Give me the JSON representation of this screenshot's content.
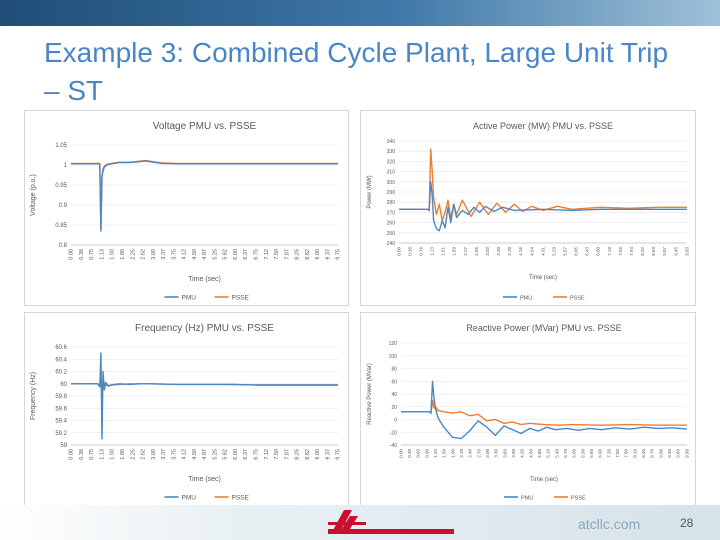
{
  "slide": {
    "title": "Example 3: Combined Cycle Plant, Large Unit Trip – ST",
    "website": "atcllc.com",
    "page_number": "28",
    "company_logo_text": "AMERICAN TRANSMISSION COMPANY"
  },
  "chart_data": [
    {
      "type": "line",
      "title": "Voltage PMU vs. PSSE",
      "xlabel": "Time (sec)",
      "ylabel": "Voltage (p.u.)",
      "x_tick_labels": [
        "0.00",
        "0.38",
        "0.75",
        "1.13",
        "1.50",
        "1.88",
        "2.25",
        "2.62",
        "3.00",
        "3.37",
        "3.75",
        "4.12",
        "4.50",
        "4.87",
        "5.25",
        "5.62",
        "6.00",
        "6.37",
        "6.75",
        "7.12",
        "7.50",
        "7.87",
        "8.25",
        "8.62",
        "9.00",
        "9.37",
        "9.75"
      ],
      "y_tick_labels": [
        "1.05",
        "1",
        "0.95",
        "0.9",
        "0.85",
        "0.8"
      ],
      "xlim": [
        0,
        10
      ],
      "ylim": [
        0.8,
        1.05
      ],
      "legend": "bottom",
      "series": [
        {
          "name": "PMU",
          "color": "#4a86c5",
          "x": [
            0,
            0.5,
            1.0,
            1.08,
            1.12,
            1.16,
            1.2,
            1.25,
            1.35,
            1.5,
            1.8,
            2.2,
            2.8,
            3.4,
            4.0,
            5,
            6,
            7,
            8,
            9,
            10
          ],
          "y": [
            1.003,
            1.003,
            1.003,
            1.003,
            0.835,
            0.97,
            0.985,
            0.995,
            1.0,
            1.003,
            1.006,
            1.006,
            1.01,
            1.004,
            1.003,
            1.003,
            1.003,
            1.003,
            1.003,
            1.003,
            1.003
          ]
        },
        {
          "name": "PSSE",
          "color": "#ed7d31",
          "x": [
            0,
            0.5,
            1.0,
            1.08,
            1.12,
            1.16,
            1.2,
            1.25,
            1.35,
            1.5,
            1.8,
            2.2,
            2.8,
            3.4,
            4.0,
            5,
            6,
            7,
            8,
            9,
            10
          ],
          "y": [
            1.004,
            1.004,
            1.004,
            1.004,
            0.84,
            0.972,
            0.99,
            0.997,
            1.002,
            1.004,
            1.007,
            1.007,
            1.011,
            1.005,
            1.004,
            1.004,
            1.004,
            1.004,
            1.004,
            1.004,
            1.004
          ]
        }
      ]
    },
    {
      "type": "line",
      "title": "Active Power (MW) PMU vs. PSSE",
      "xlabel": "Time (sec)",
      "ylabel": "Power (MW)",
      "x_tick_labels": [
        "0.00",
        "0.38",
        "0.76",
        "1.13",
        "1.51",
        "1.89",
        "2.27",
        "2.65",
        "3.02",
        "3.40",
        "3.78",
        "4.16",
        "4.54",
        "4.91",
        "5.29",
        "5.67",
        "6.05",
        "6.43",
        "6.80",
        "7.18",
        "7.56",
        "7.94",
        "8.32",
        "8.69",
        "9.07",
        "9.45",
        "9.83"
      ],
      "y_tick_labels": [
        "340",
        "330",
        "320",
        "310",
        "300",
        "290",
        "280",
        "270",
        "260",
        "250",
        "240"
      ],
      "xlim": [
        0,
        10
      ],
      "ylim": [
        240,
        340
      ],
      "legend": "bottom",
      "series": [
        {
          "name": "PMU",
          "color": "#4a86c5",
          "x": [
            0,
            0.8,
            1.0,
            1.05,
            1.1,
            1.15,
            1.2,
            1.3,
            1.4,
            1.5,
            1.6,
            1.7,
            1.8,
            1.9,
            2.0,
            2.2,
            2.4,
            2.6,
            2.8,
            3.0,
            3.3,
            3.6,
            4,
            5,
            6,
            7,
            8,
            9,
            10
          ],
          "y": [
            273,
            273,
            273,
            272,
            300,
            288,
            262,
            254,
            252,
            262,
            255,
            275,
            260,
            278,
            265,
            272,
            268,
            275,
            270,
            276,
            271,
            275,
            272,
            273,
            272,
            273,
            273,
            273,
            273
          ]
        },
        {
          "name": "PSSE",
          "color": "#ed7d31",
          "x": [
            0,
            0.8,
            1.0,
            1.05,
            1.1,
            1.15,
            1.2,
            1.3,
            1.4,
            1.5,
            1.6,
            1.7,
            1.8,
            1.9,
            2.0,
            2.2,
            2.5,
            2.8,
            3.1,
            3.4,
            3.7,
            4.0,
            4.3,
            4.6,
            5,
            5.5,
            6,
            7,
            8,
            9,
            10
          ],
          "y": [
            273,
            273,
            273,
            272,
            332,
            312,
            285,
            268,
            278,
            262,
            270,
            282,
            264,
            278,
            268,
            282,
            266,
            280,
            268,
            279,
            270,
            278,
            271,
            276,
            272,
            276,
            273,
            275,
            274,
            275,
            275
          ]
        }
      ]
    },
    {
      "type": "line",
      "title": "Frequency (Hz) PMU vs. PSSE",
      "xlabel": "Time (sec)",
      "ylabel": "Frequency (Hz)",
      "x_tick_labels": [
        "0.00",
        "0.38",
        "0.75",
        "1.13",
        "1.50",
        "1.88",
        "2.25",
        "2.62",
        "3.00",
        "3.37",
        "3.75",
        "4.12",
        "4.50",
        "4.87",
        "5.25",
        "5.62",
        "6.00",
        "6.37",
        "6.75",
        "7.12",
        "7.50",
        "7.87",
        "8.25",
        "8.62",
        "9.00",
        "9.37",
        "9.75"
      ],
      "y_tick_labels": [
        "60.6",
        "60.4",
        "60.2",
        "60",
        "59.8",
        "59.6",
        "59.4",
        "59.2",
        "59"
      ],
      "xlim": [
        0,
        10
      ],
      "ylim": [
        59,
        60.6
      ],
      "legend": "bottom",
      "series": [
        {
          "name": "PMU",
          "color": "#4a86c5",
          "x": [
            0,
            0.5,
            1.0,
            1.08,
            1.12,
            1.16,
            1.2,
            1.25,
            1.3,
            1.4,
            1.5,
            1.8,
            2.2,
            2.6,
            3,
            4,
            5,
            6,
            7,
            8,
            9,
            10
          ],
          "y": [
            60.0,
            60.0,
            60.0,
            59.95,
            60.5,
            59.1,
            60.2,
            59.9,
            60.02,
            59.96,
            59.98,
            60.0,
            59.99,
            60.0,
            60.0,
            59.99,
            59.99,
            59.99,
            59.98,
            59.98,
            59.98,
            59.98
          ]
        },
        {
          "name": "PSSE",
          "color": "#ed7d31",
          "x": [
            0,
            0.5,
            1.0,
            1.08,
            1.12,
            1.16,
            1.2,
            1.25,
            1.3,
            1.4,
            1.5,
            1.8,
            2.2,
            2.6,
            3,
            4,
            5,
            6,
            7,
            8,
            9,
            10
          ],
          "y": [
            60.0,
            60.0,
            60.0,
            59.98,
            60.12,
            59.8,
            60.05,
            59.94,
            59.98,
            59.97,
            59.98,
            59.99,
            60.0,
            60.0,
            60.0,
            59.99,
            59.99,
            59.99,
            59.98,
            59.98,
            59.98,
            59.98
          ]
        }
      ]
    },
    {
      "type": "line",
      "title": "Reactive Power (MVar) PMU vs. PSSE",
      "xlabel": "Time (sec)",
      "ylabel": "Reactive Power (MVar)",
      "x_tick_labels": [
        "0.00",
        "0.30",
        "0.60",
        "0.90",
        "1.20",
        "1.50",
        "1.80",
        "2.10",
        "2.40",
        "2.70",
        "3.00",
        "3.30",
        "3.60",
        "3.90",
        "4.20",
        "4.50",
        "4.80",
        "5.10",
        "5.40",
        "5.70",
        "6.00",
        "6.30",
        "6.60",
        "6.90",
        "7.20",
        "7.50",
        "7.80",
        "8.10",
        "8.40",
        "8.70",
        "9.00",
        "9.30",
        "9.60",
        "9.90"
      ],
      "y_tick_labels": [
        "120",
        "100",
        "80",
        "60",
        "40",
        "20",
        "0",
        "-20",
        "-40"
      ],
      "xlim": [
        0,
        10
      ],
      "ylim": [
        -40,
        120
      ],
      "legend": "bottom",
      "series": [
        {
          "name": "PMU",
          "color": "#4a86c5",
          "x": [
            0,
            0.8,
            1.0,
            1.05,
            1.1,
            1.15,
            1.2,
            1.3,
            1.5,
            1.8,
            2.1,
            2.4,
            2.7,
            3.0,
            3.3,
            3.6,
            3.9,
            4.2,
            4.5,
            4.8,
            5.1,
            5.4,
            5.8,
            6.2,
            6.6,
            7,
            7.5,
            8,
            8.5,
            9,
            9.5,
            10
          ],
          "y": [
            12,
            12,
            12,
            10,
            60,
            35,
            18,
            2,
            -12,
            -28,
            -30,
            -18,
            -2,
            -12,
            -25,
            -10,
            -16,
            -22,
            -14,
            -18,
            -12,
            -16,
            -14,
            -17,
            -14,
            -16,
            -13,
            -15,
            -12,
            -14,
            -13,
            -15
          ]
        },
        {
          "name": "PSSE",
          "color": "#ed7d31",
          "x": [
            0,
            0.8,
            1.0,
            1.05,
            1.1,
            1.15,
            1.2,
            1.3,
            1.5,
            1.8,
            2.1,
            2.4,
            2.7,
            3.0,
            3.3,
            3.6,
            3.9,
            4.2,
            4.5,
            5,
            5.5,
            6,
            7,
            8,
            9,
            10
          ],
          "y": [
            12,
            12,
            12,
            10,
            30,
            18,
            20,
            14,
            12,
            10,
            12,
            6,
            8,
            -2,
            0,
            -6,
            -4,
            -8,
            -6,
            -8,
            -9,
            -8,
            -9,
            -8,
            -9,
            -9
          ]
        }
      ]
    }
  ]
}
